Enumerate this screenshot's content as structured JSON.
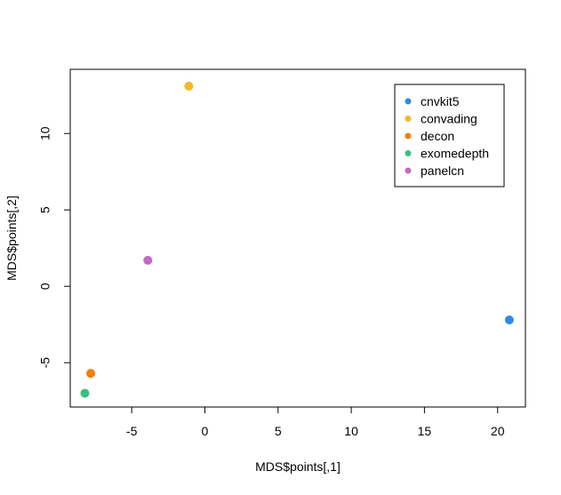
{
  "chart_data": {
    "type": "scatter",
    "title": "",
    "xlabel": "MDS$points[,1]",
    "ylabel": "MDS$points[,2]",
    "xlim": [
      -9.2,
      21.9
    ],
    "ylim": [
      -7.9,
      14.2
    ],
    "x_ticks": [
      -5,
      0,
      5,
      10,
      15,
      20
    ],
    "y_ticks": [
      -5,
      0,
      5,
      10
    ],
    "grid": false,
    "legend_position": "top-right",
    "series": [
      {
        "name": "cnvkit5",
        "color": "#2b8be8",
        "points": [
          {
            "x": 20.8,
            "y": -2.2
          }
        ]
      },
      {
        "name": "convading",
        "color": "#f5b829",
        "points": [
          {
            "x": -1.1,
            "y": 13.1
          }
        ]
      },
      {
        "name": "decon",
        "color": "#f07f0c",
        "points": [
          {
            "x": -7.8,
            "y": -5.7
          }
        ]
      },
      {
        "name": "exomedepth",
        "color": "#35c37c",
        "points": [
          {
            "x": -8.2,
            "y": -7.0
          }
        ]
      },
      {
        "name": "panelcn",
        "color": "#c865c6",
        "points": [
          {
            "x": -3.9,
            "y": 1.7
          }
        ]
      }
    ]
  }
}
